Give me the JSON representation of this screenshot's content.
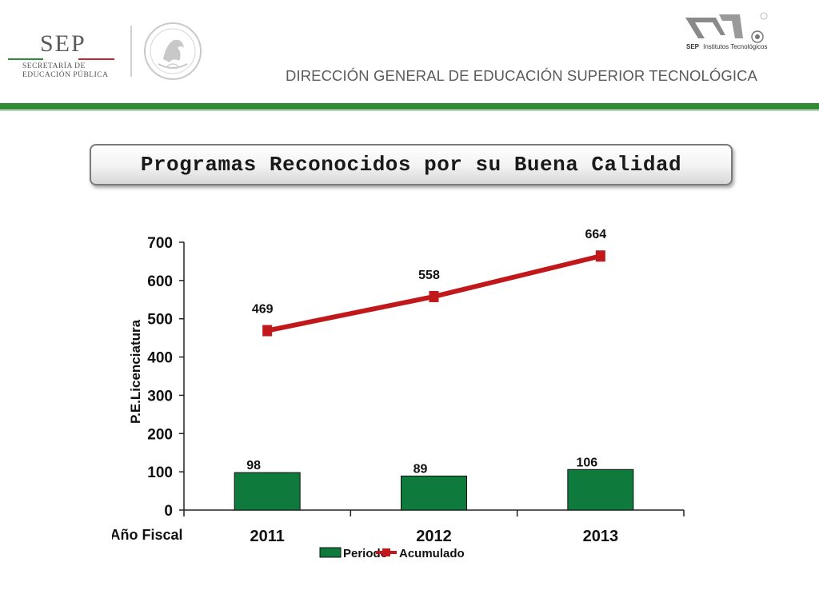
{
  "header": {
    "sep_word": "SEP",
    "sep_line1": "SECRETARÍA DE",
    "sep_line2": "EDUCACIÓN PÚBLICA",
    "it_brand": "SEP",
    "it_name": "Institutos Tecnológicos",
    "dgest": "DIRECCIÓN GENERAL DE EDUCACIÓN SUPERIOR TECNOLÓGICA"
  },
  "slide_title": "Programas Reconocidos por su Buena Calidad",
  "colors": {
    "bar": "#0e7a3c",
    "line": "#c0181b",
    "header_green": "#2f8c31"
  },
  "chart_data": {
    "type": "bar",
    "categories": [
      "2011",
      "2012",
      "2013"
    ],
    "series": [
      {
        "name": "Periodo",
        "type": "bar",
        "values": [
          98,
          89,
          106
        ]
      },
      {
        "name": "Acumulado",
        "type": "line",
        "values": [
          469,
          558,
          664
        ]
      }
    ],
    "xlabel": "Año Fiscal",
    "ylabel": "P.E.Licenciatura",
    "ylim": [
      0,
      700
    ],
    "yticks": [
      "0",
      "100",
      "200",
      "300",
      "400",
      "500",
      "600",
      "700"
    ],
    "grid": false,
    "legend": "bottom"
  }
}
